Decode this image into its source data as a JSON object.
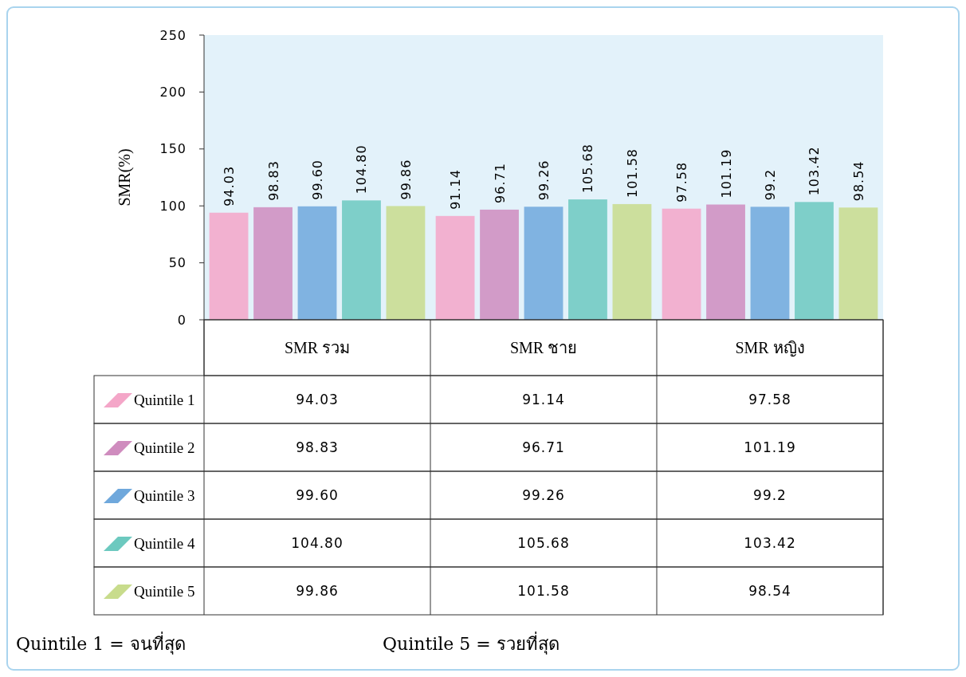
{
  "chart_data": {
    "type": "bar",
    "ylabel": "SMR(%)",
    "categories": [
      "SMR รวม",
      "SMR ชาย",
      "SMR หญิง"
    ],
    "ylim": [
      0,
      250
    ],
    "yticks": [
      0,
      50,
      100,
      150,
      200,
      250
    ],
    "legend": "bottom",
    "series": [
      {
        "name": "Quintile 1",
        "color": "#f4a6c8",
        "values": [
          94.03,
          91.14,
          97.58
        ],
        "value_labels": [
          "94.03",
          "91.14",
          "97.58"
        ]
      },
      {
        "name": "Quintile 2",
        "color": "#cf8cbe",
        "values": [
          98.83,
          96.71,
          101.19
        ],
        "value_labels": [
          "98.83",
          "96.71",
          "101.19"
        ]
      },
      {
        "name": "Quintile 3",
        "color": "#6fa8dc",
        "values": [
          99.6,
          99.26,
          99.2
        ],
        "value_labels": [
          "99.60",
          "99.26",
          "99.2"
        ]
      },
      {
        "name": "Quintile 4",
        "color": "#6cc9bf",
        "values": [
          104.8,
          105.68,
          103.42
        ],
        "value_labels": [
          "104.80",
          "105.68",
          "103.42"
        ]
      },
      {
        "name": "Quintile 5",
        "color": "#c8dc8c",
        "values": [
          99.86,
          101.58,
          98.54
        ],
        "value_labels": [
          "99.86",
          "101.58",
          "98.54"
        ]
      }
    ],
    "annotations": [
      "Quintile 1 = จนที่สุด",
      "Quintile 5 = รวยที่สุด"
    ]
  }
}
